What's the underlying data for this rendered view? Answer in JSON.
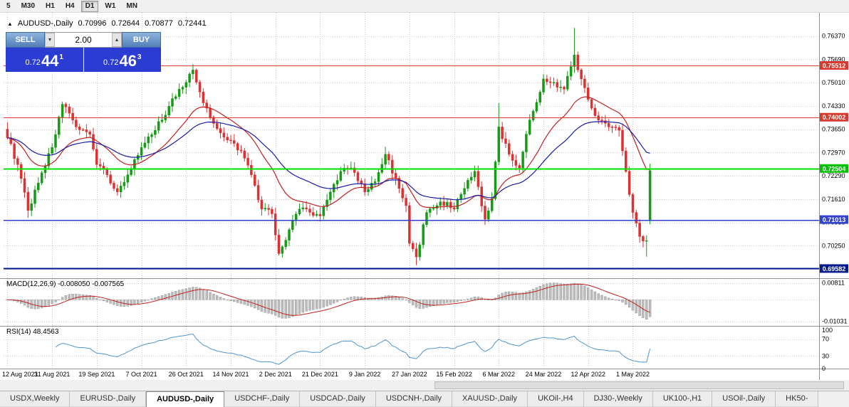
{
  "icons": {
    "panel_toggle": "▲",
    "volume_down": "▾",
    "volume_up": "▴"
  },
  "timeframe_toolbar": {
    "buttons": [
      "5",
      "M30",
      "H1",
      "H4",
      "D1",
      "W1",
      "MN"
    ],
    "active": "D1"
  },
  "chart_header": {
    "symbol": "AUDUSD-,Daily",
    "open": "0.70996",
    "high": "0.72644",
    "low": "0.70877",
    "close": "0.72441"
  },
  "trade_panel": {
    "sell_label": "SELL",
    "buy_label": "BUY",
    "volume": "2.00",
    "sell_price": {
      "small": "0.72",
      "big": "44",
      "sup": "1"
    },
    "buy_price": {
      "small": "0.72",
      "big": "46",
      "sup": "3"
    }
  },
  "indicators": {
    "macd_label": "MACD(12,26,9) -0.008050 -0.007565",
    "rsi_label": "RSI(14) 48.4563"
  },
  "tabs": {
    "items": [
      "USDX,Weekly",
      "EURUSD-,Daily",
      "AUDUSD-,Daily",
      "USDCHF-,Daily",
      "USDCAD-,Daily",
      "USDCNH-,Daily",
      "XAUUSD-,Daily",
      "UKOil-,H4",
      "DJ30-,Weekly",
      "UK100-,H1",
      "USOil-,Daily",
      "HK50-"
    ],
    "active": "AUDUSD-,Daily"
  },
  "chart_data": {
    "type": "candlestick",
    "symbol": "AUDUSD-",
    "timeframe": "Daily",
    "last_ohlc": {
      "open": 0.70996,
      "high": 0.72644,
      "low": 0.70877,
      "close": 0.72441
    },
    "bars": 188,
    "price_min": 0.693,
    "price_max": 0.7705,
    "up_color": "#169b16",
    "down_color": "#dd3030",
    "price_ticks": [
      {
        "label": "0.76370",
        "value": 0.7637
      },
      {
        "label": "0.75690",
        "value": 0.7569
      },
      {
        "label": "0.75010",
        "value": 0.7501
      },
      {
        "label": "0.74330",
        "value": 0.7433
      },
      {
        "label": "0.73650",
        "value": 0.7365
      },
      {
        "label": "0.72970",
        "value": 0.7297
      },
      {
        "label": "0.72290",
        "value": 0.7229
      },
      {
        "label": "0.71610",
        "value": 0.7161
      },
      {
        "label": "0.70930",
        "value": 0.7093
      },
      {
        "label": "0.70250",
        "value": 0.7025
      },
      {
        "label": "0.69570",
        "value": 0.6957
      }
    ],
    "price_badges": [
      {
        "label": "0.75512",
        "value": 0.75512,
        "color": "#d93a2e"
      },
      {
        "label": "0.74002",
        "value": 0.74002,
        "color": "#d93a2e"
      },
      {
        "label": "0.72504",
        "value": 0.72504,
        "color": "#00c000"
      },
      {
        "label": "0.71013",
        "value": 0.71013,
        "color": "#3342cf"
      },
      {
        "label": "0.69582",
        "value": 0.69582,
        "color": "#001a8c"
      }
    ],
    "h_lines": [
      {
        "value": 0.75512,
        "color": "#e03a2f",
        "width": 1
      },
      {
        "value": 0.74002,
        "color": "#e03a2f",
        "width": 1
      },
      {
        "value": 0.72504,
        "color": "#00e100",
        "width": 2
      },
      {
        "value": 0.71013,
        "color": "#2f3fd3",
        "width": 1.5
      },
      {
        "value": 0.69582,
        "color": "#001a8c",
        "width": 2
      }
    ],
    "close_anchors": [
      [
        0,
        0.734
      ],
      [
        3,
        0.7262
      ],
      [
        6,
        0.7128
      ],
      [
        10,
        0.7238
      ],
      [
        13,
        0.7312
      ],
      [
        16,
        0.7438
      ],
      [
        20,
        0.7372
      ],
      [
        24,
        0.735
      ],
      [
        26,
        0.7262
      ],
      [
        29,
        0.7232
      ],
      [
        32,
        0.7182
      ],
      [
        35,
        0.7232
      ],
      [
        39,
        0.7312
      ],
      [
        43,
        0.7362
      ],
      [
        47,
        0.7432
      ],
      [
        50,
        0.7482
      ],
      [
        52,
        0.7502
      ],
      [
        54,
        0.7538
      ],
      [
        57,
        0.7442
      ],
      [
        60,
        0.7382
      ],
      [
        63,
        0.7342
      ],
      [
        65,
        0.7332
      ],
      [
        68,
        0.7302
      ],
      [
        71,
        0.7232
      ],
      [
        74,
        0.7132
      ],
      [
        77,
        0.7118
      ],
      [
        79,
        0.7002
      ],
      [
        82,
        0.7072
      ],
      [
        85,
        0.7132
      ],
      [
        88,
        0.7122
      ],
      [
        91,
        0.7112
      ],
      [
        94,
        0.7182
      ],
      [
        97,
        0.7242
      ],
      [
        100,
        0.7252
      ],
      [
        104,
        0.7182
      ],
      [
        107,
        0.7212
      ],
      [
        110,
        0.7292
      ],
      [
        113,
        0.7222
      ],
      [
        116,
        0.7142
      ],
      [
        117,
        0.7032
      ],
      [
        119,
        0.6992
      ],
      [
        122,
        0.7122
      ],
      [
        125,
        0.7142
      ],
      [
        128,
        0.7152
      ],
      [
        130,
        0.7132
      ],
      [
        133,
        0.7192
      ],
      [
        136,
        0.7242
      ],
      [
        139,
        0.7102
      ],
      [
        141,
        0.7162
      ],
      [
        143,
        0.7372
      ],
      [
        146,
        0.7292
      ],
      [
        149,
        0.7252
      ],
      [
        152,
        0.7392
      ],
      [
        156,
        0.7512
      ],
      [
        159,
        0.7502
      ],
      [
        162,
        0.7482
      ],
      [
        165,
        0.7582
      ],
      [
        167,
        0.7512
      ],
      [
        169,
        0.7452
      ],
      [
        172,
        0.7392
      ],
      [
        175,
        0.7372
      ],
      [
        178,
        0.7362
      ],
      [
        180,
        0.7242
      ],
      [
        182,
        0.7122
      ],
      [
        184,
        0.7052
      ],
      [
        186,
        0.704
      ],
      [
        187,
        0.72441
      ]
    ],
    "wick_overrides": [
      {
        "i": 6,
        "l": 0.7106
      },
      {
        "i": 54,
        "h": 0.7555
      },
      {
        "i": 110,
        "h": 0.7314
      },
      {
        "i": 119,
        "l": 0.6968
      },
      {
        "i": 143,
        "h": 0.7441
      },
      {
        "i": 165,
        "h": 0.7661
      },
      {
        "i": 186,
        "l": 0.6993
      },
      {
        "i": 187,
        "o": 0.70996,
        "h": 0.72644,
        "l": 0.70877,
        "c": 0.72441
      }
    ],
    "moving_averages": [
      {
        "period": 20,
        "color": "#c22020"
      },
      {
        "period": 40,
        "color": "#1a1aa8"
      }
    ],
    "x_labels": [
      {
        "text": "12 Aug 2021",
        "bar": 0
      },
      {
        "text": "31 Aug 2021",
        "bar": 13
      },
      {
        "text": "19 Sep 2021",
        "bar": 26
      },
      {
        "text": "7 Oct 2021",
        "bar": 39
      },
      {
        "text": "26 Oct 2021",
        "bar": 52
      },
      {
        "text": "14 Nov 2021",
        "bar": 65
      },
      {
        "text": "2 Dec 2021",
        "bar": 78
      },
      {
        "text": "21 Dec 2021",
        "bar": 91
      },
      {
        "text": "9 Jan 2022",
        "bar": 104
      },
      {
        "text": "27 Jan 2022",
        "bar": 117
      },
      {
        "text": "15 Feb 2022",
        "bar": 130
      },
      {
        "text": "6 Mar 2022",
        "bar": 143
      },
      {
        "text": "24 Mar 2022",
        "bar": 156
      },
      {
        "text": "12 Apr 2022",
        "bar": 169
      },
      {
        "text": "1 May 2022",
        "bar": 182
      }
    ],
    "macd": {
      "fast": 12,
      "slow": 26,
      "signal": 9,
      "range": [
        -0.0125,
        0.01
      ],
      "ticks": [
        {
          "label": "0.00811",
          "value": 0.00811
        },
        {
          "label": "-0.01031",
          "value": -0.01031
        }
      ],
      "hist_color": "#bdbdbd",
      "hist_stroke": "#8f8f8f",
      "signal_color": "#c22020",
      "last_values": {
        "main": -0.00805,
        "signal": -0.007565
      }
    },
    "rsi": {
      "period": 14,
      "color": "#4f94cd",
      "range": [
        0,
        100
      ],
      "ticks": [
        {
          "label": "100",
          "value": 100
        },
        {
          "label": "70",
          "value": 70
        },
        {
          "label": "30",
          "value": 30
        },
        {
          "label": "0",
          "value": 0
        }
      ],
      "levels": [
        70,
        30
      ],
      "last_value": 48.4563
    }
  }
}
